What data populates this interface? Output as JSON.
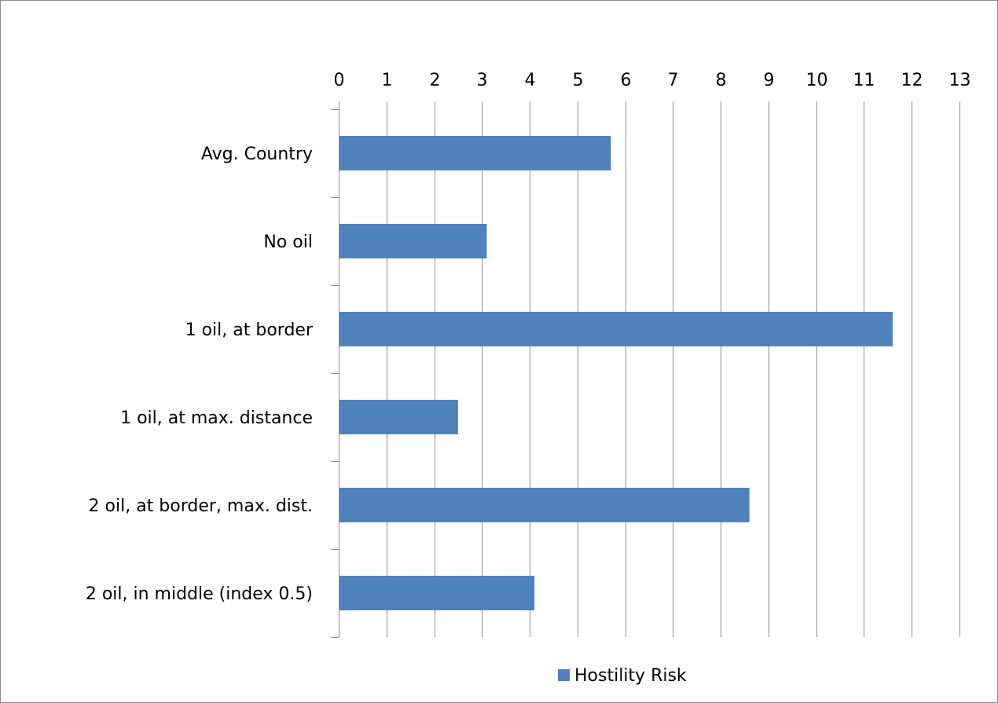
{
  "chart_data": {
    "type": "bar",
    "orientation": "horizontal",
    "title": "",
    "xlabel": "",
    "ylabel": "",
    "categories": [
      "Avg. Country",
      "No oil",
      "1 oil, at border",
      "1 oil, at max. distance",
      "2 oil, at border, max. dist.",
      "2 oil, in middle (index 0.5)"
    ],
    "series": [
      {
        "name": "Hostility Risk",
        "color": "#4f81bd",
        "values": [
          5.7,
          3.1,
          11.6,
          2.5,
          8.6,
          4.1
        ]
      }
    ],
    "xlim": [
      0,
      13
    ],
    "xticks": [
      "0",
      "1",
      "2",
      "3",
      "4",
      "5",
      "6",
      "7",
      "8",
      "9",
      "10",
      "11",
      "12",
      "13"
    ],
    "x_axis_position": "top",
    "grid": "vertical",
    "legend": "bottom"
  }
}
